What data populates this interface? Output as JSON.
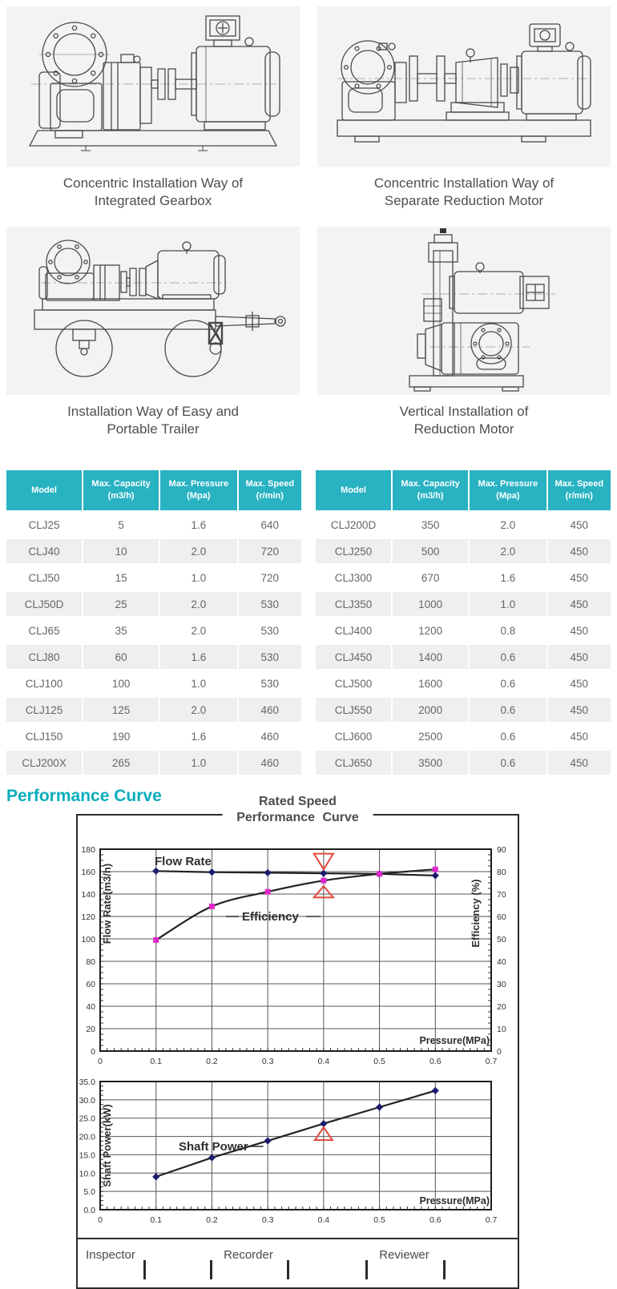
{
  "drawings": {
    "items": [
      {
        "caption_line1": "Concentric Installation Way of",
        "caption_line2": "Integrated Gearbox"
      },
      {
        "caption_line1": "Concentric Installation Way of",
        "caption_line2": "Separate Reduction Motor"
      },
      {
        "caption_line1": "Installation Way of Easy and",
        "caption_line2": "Portable Trailer"
      },
      {
        "caption_line1": "Vertical Installation of",
        "caption_line2": "Reduction Motor"
      }
    ]
  },
  "spec_tables": {
    "columns": [
      {
        "line1": "Model",
        "line2": ""
      },
      {
        "line1": "Max. Capacity",
        "line2": "(m3/h)"
      },
      {
        "line1": "Max. Pressure",
        "line2": "(Mpa)"
      },
      {
        "line1": "Max. Speed",
        "line2": "(r/min)"
      }
    ],
    "left_rows": [
      [
        "CLJ25",
        "5",
        "1.6",
        "640"
      ],
      [
        "CLJ40",
        "10",
        "2.0",
        "720"
      ],
      [
        "CLJ50",
        "15",
        "1.0",
        "720"
      ],
      [
        "CLJ50D",
        "25",
        "2.0",
        "530"
      ],
      [
        "CLJ65",
        "35",
        "2.0",
        "530"
      ],
      [
        "CLJ80",
        "60",
        "1.6",
        "530"
      ],
      [
        "CLJ100",
        "100",
        "1.0",
        "530"
      ],
      [
        "CLJ125",
        "125",
        "2.0",
        "460"
      ],
      [
        "CLJ150",
        "190",
        "1.6",
        "460"
      ],
      [
        "CLJ200X",
        "265",
        "1.0",
        "460"
      ]
    ],
    "right_rows": [
      [
        "CLJ200D",
        "350",
        "2.0",
        "450"
      ],
      [
        "CLJ250",
        "500",
        "2.0",
        "450"
      ],
      [
        "CLJ300",
        "670",
        "1.6",
        "450"
      ],
      [
        "CLJ350",
        "1000",
        "1.0",
        "450"
      ],
      [
        "CLJ400",
        "1200",
        "0.8",
        "450"
      ],
      [
        "CLJ450",
        "1400",
        "0.6",
        "450"
      ],
      [
        "CLJ500",
        "1600",
        "0.6",
        "450"
      ],
      [
        "CLJ550",
        "2000",
        "0.6",
        "450"
      ],
      [
        "CLJ600",
        "2500",
        "0.6",
        "450"
      ],
      [
        "CLJ650",
        "3500",
        "0.6",
        "450"
      ]
    ]
  },
  "performance": {
    "heading": "Performance Curve",
    "figure_title_line1": "Rated Speed",
    "figure_title_line2": "Performance Curve",
    "footer_cells": [
      "Inspector",
      "Recorder",
      "Reviewer"
    ]
  },
  "chart_data": [
    {
      "type": "line",
      "title": "Rated Speed Performance Curve",
      "xlabel": "Pressure(MPa)",
      "x_range": [
        0,
        0.7
      ],
      "x_ticks": [
        "0",
        "0.1",
        "0.2",
        "0.3",
        "0.4",
        "0.5",
        "0.6",
        "0.7"
      ],
      "grid": true,
      "left_axis": {
        "label": "Flow Rate(m3/h)",
        "range": [
          0,
          180
        ],
        "step": 20
      },
      "right_axis": {
        "label": "Efficiency (%)",
        "range": [
          0,
          90
        ],
        "step": 10
      },
      "series": [
        {
          "name": "Flow Rate",
          "axis": "left",
          "marker": "diamond",
          "smooth": false,
          "x": [
            0.1,
            0.2,
            0.3,
            0.4,
            0.5,
            0.6
          ],
          "y": [
            160.5,
            159.5,
            159,
            158.5,
            158,
            156.5
          ]
        },
        {
          "name": "Efficiency",
          "axis": "right",
          "marker": "square",
          "smooth": true,
          "x": [
            0.1,
            0.2,
            0.3,
            0.4,
            0.5,
            0.6
          ],
          "y": [
            49.5,
            64.5,
            71,
            76,
            79,
            81
          ]
        }
      ],
      "annotations": [
        {
          "shape": "bowtie",
          "x": 0.4,
          "top": 176,
          "upper_apex": 162,
          "lower_apex": 147,
          "base": 137
        }
      ]
    },
    {
      "type": "line",
      "title": "Shaft Power Curve",
      "xlabel": "Pressure(MPa)",
      "x_range": [
        0,
        0.7
      ],
      "x_ticks": [
        "0",
        "0.1",
        "0.2",
        "0.3",
        "0.4",
        "0.5",
        "0.6",
        "0.7"
      ],
      "grid": true,
      "left_axis": {
        "label": "Shaft Power(kW)",
        "range": [
          0,
          35
        ],
        "step": 5,
        "decimals": 1
      },
      "series": [
        {
          "name": "Shaft Power",
          "axis": "left",
          "marker": "diamond",
          "smooth": false,
          "x": [
            0.1,
            0.2,
            0.3,
            0.4,
            0.5,
            0.6
          ],
          "y": [
            9,
            14.2,
            18.8,
            23.5,
            28,
            32.5
          ]
        }
      ],
      "annotations": [
        {
          "shape": "triangle",
          "x": 0.4,
          "apex": 22.5,
          "base": 19
        }
      ]
    }
  ],
  "colors": {
    "teal": "#28b2c2",
    "heading_teal": "#0aadbc",
    "row_alt": "#efefef",
    "navy": "#1c1c6e",
    "magenta": "#df27cb",
    "red": "#e2483d",
    "line": "#232323"
  }
}
